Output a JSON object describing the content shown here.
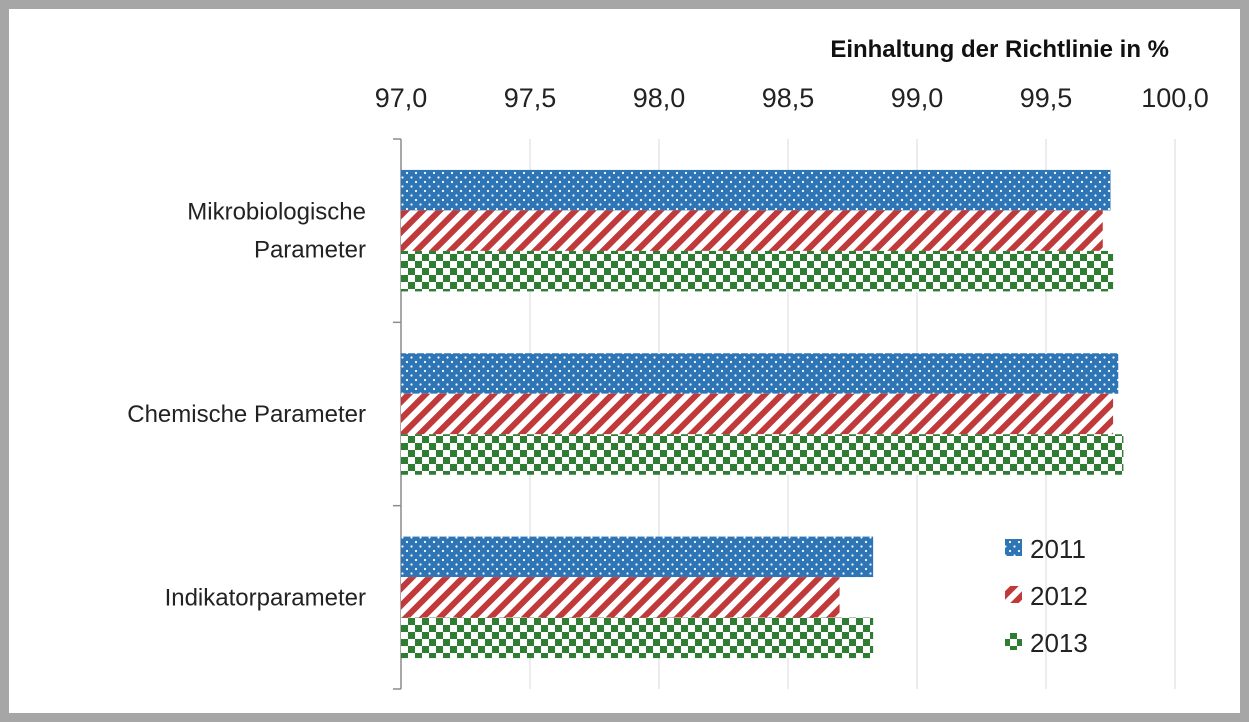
{
  "chart_data": {
    "type": "bar",
    "orientation": "horizontal",
    "title": "",
    "xlabel": "Einhaltung der Richtlinie in %",
    "ylabel": "",
    "xlim": [
      97.0,
      100.0
    ],
    "x_ticks": [
      "97,0",
      "97,5",
      "98,0",
      "98,5",
      "99,0",
      "99,5",
      "100,0"
    ],
    "x_axis_position": "top",
    "grid": true,
    "legend_position": "bottom-right",
    "categories": [
      [
        "Mikrobiologische",
        "Parameter"
      ],
      [
        "Chemische Parameter"
      ],
      [
        "Indikatorparameter"
      ]
    ],
    "series": [
      {
        "name": "2011",
        "values": [
          99.75,
          99.78,
          98.83
        ],
        "color": "#2e75b6",
        "pattern": "dots"
      },
      {
        "name": "2012",
        "values": [
          99.72,
          99.76,
          98.7
        ],
        "color": "#c0393b",
        "pattern": "diagonal-stripes"
      },
      {
        "name": "2013",
        "values": [
          99.76,
          99.8,
          98.83
        ],
        "color": "#2e7d32",
        "pattern": "checkerboard"
      }
    ]
  }
}
